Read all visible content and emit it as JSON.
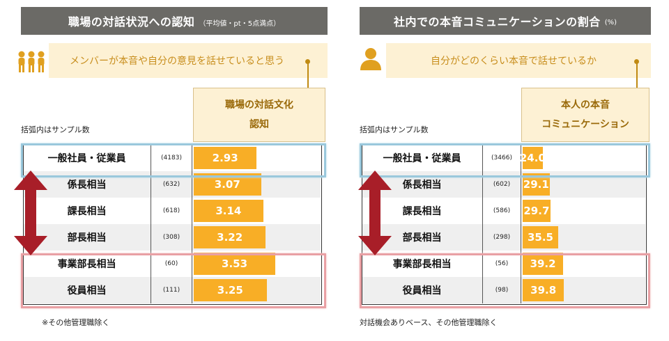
{
  "left": {
    "title": "職場の対話状況への認知",
    "title_sub": "（平均値・pt・5点満点）",
    "prompt": "メンバーが本音や自分の意見を話せていると思う",
    "column_header_lines": [
      "職場の対話文化",
      "認知"
    ],
    "sample_note": "括弧内はサンプル数",
    "footnote": "※その他管理職除く",
    "icon": "group-people-icon",
    "rows": [
      {
        "label": "一般社員・従業員",
        "n": "(4183)",
        "value_text": "2.93"
      },
      {
        "label": "係長相当",
        "n": "(632)",
        "value_text": "3.07"
      },
      {
        "label": "課長相当",
        "n": "(618)",
        "value_text": "3.14"
      },
      {
        "label": "部長相当",
        "n": "(308)",
        "value_text": "3.22"
      },
      {
        "label": "事業部長相当",
        "n": "(60)",
        "value_text": "3.53"
      },
      {
        "label": "役員相当",
        "n": "(111)",
        "value_text": "3.25"
      }
    ]
  },
  "right": {
    "title": "社内での本音コミュニケーションの割合",
    "title_sub": "(%)",
    "prompt": "自分がどのくらい本音で話せているか",
    "column_header_lines": [
      "本人の本音",
      "コミュニケーション"
    ],
    "sample_note": "括弧内はサンプル数",
    "footnote": "対話機会ありベース、その他管理職除く",
    "icon": "person-icon",
    "rows": [
      {
        "label": "一般社員・従業員",
        "n": "(3466)",
        "value_text": "24.0"
      },
      {
        "label": "係長相当",
        "n": "(602)",
        "value_text": "29.1"
      },
      {
        "label": "課長相当",
        "n": "(586)",
        "value_text": "29.7"
      },
      {
        "label": "部長相当",
        "n": "(298)",
        "value_text": "35.5"
      },
      {
        "label": "事業部長相当",
        "n": "(56)",
        "value_text": "39.2"
      },
      {
        "label": "役員相当",
        "n": "(98)",
        "value_text": "39.8"
      }
    ]
  },
  "chart_data": [
    {
      "type": "bar",
      "title": "職場の対話状況への認知",
      "subtitle": "（平均値・pt・5点満点）",
      "categories": [
        "一般社員・従業員",
        "係長相当",
        "課長相当",
        "部長相当",
        "事業部長相当",
        "役員相当"
      ],
      "sample_sizes": [
        4183,
        632,
        618,
        308,
        60,
        111
      ],
      "series": [
        {
          "name": "職場の対話文化認知",
          "values": [
            2.93,
            3.07,
            3.14,
            3.22,
            3.53,
            3.25
          ]
        }
      ],
      "ylim": [
        0,
        5
      ]
    },
    {
      "type": "bar",
      "title": "社内での本音コミュニケーションの割合",
      "subtitle": "(%)",
      "categories": [
        "一般社員・従業員",
        "係長相当",
        "課長相当",
        "部長相当",
        "事業部長相当",
        "役員相当"
      ],
      "sample_sizes": [
        3466,
        602,
        586,
        298,
        56,
        98
      ],
      "series": [
        {
          "name": "本人の本音コミュニケーション",
          "values": [
            24.0,
            29.1,
            29.7,
            35.5,
            39.2,
            39.8
          ]
        }
      ],
      "ylim": [
        0,
        100
      ]
    }
  ],
  "colors": {
    "bar": "#f8ae26",
    "title_bg": "#6b6a66",
    "prompt_bg": "#fdf1d4",
    "accent": "#c08a12",
    "arrow": "#a81e28",
    "highlight_blue": "#9ac8dc",
    "highlight_red": "#e9a0a4"
  }
}
